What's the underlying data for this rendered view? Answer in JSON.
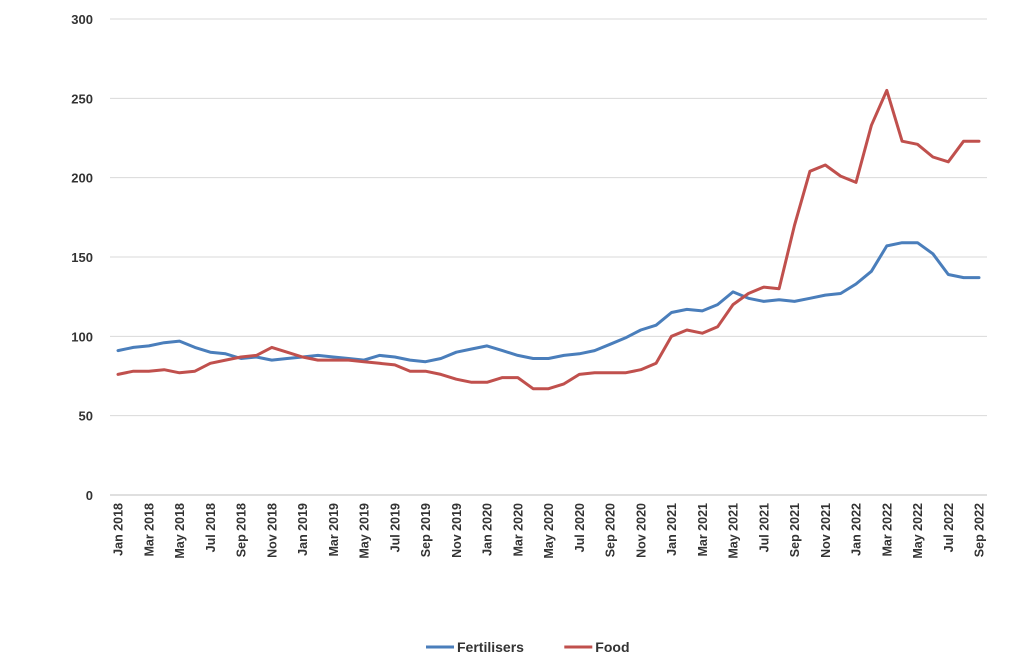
{
  "chart_data": {
    "type": "line",
    "title": "",
    "xlabel": "",
    "ylabel": "",
    "ylim": [
      0,
      300
    ],
    "y_ticks": [
      0,
      50,
      100,
      150,
      200,
      250,
      300
    ],
    "grid": "horizontal",
    "legend_position": "bottom-center",
    "x": [
      "Jan 2018",
      "Feb 2018",
      "Mar 2018",
      "Apr 2018",
      "May 2018",
      "Jun 2018",
      "Jul 2018",
      "Aug 2018",
      "Sep 2018",
      "Oct 2018",
      "Nov 2018",
      "Dec 2018",
      "Jan 2019",
      "Feb 2019",
      "Mar 2019",
      "Apr 2019",
      "May 2019",
      "Jun 2019",
      "Jul 2019",
      "Aug 2019",
      "Sep 2019",
      "Oct 2019",
      "Nov 2019",
      "Dec 2019",
      "Jan 2020",
      "Feb 2020",
      "Mar 2020",
      "Apr 2020",
      "May 2020",
      "Jun 2020",
      "Jul 2020",
      "Aug 2020",
      "Sep 2020",
      "Oct 2020",
      "Nov 2020",
      "Dec 2020",
      "Jan 2021",
      "Feb 2021",
      "Mar 2021",
      "Apr 2021",
      "May 2021",
      "Jun 2021",
      "Jul 2021",
      "Aug 2021",
      "Sep 2021",
      "Oct 2021",
      "Nov 2021",
      "Dec 2021",
      "Jan 2022",
      "Feb 2022",
      "Mar 2022",
      "Apr 2022",
      "May 2022",
      "Jun 2022",
      "Jul 2022",
      "Aug 2022",
      "Sep 2022"
    ],
    "x_tick_labels": [
      "Jan 2018",
      "Mar 2018",
      "May 2018",
      "Jul 2018",
      "Sep 2018",
      "Nov 2018",
      "Jan 2019",
      "Mar 2019",
      "May 2019",
      "Jul 2019",
      "Sep 2019",
      "Nov 2019",
      "Jan 2020",
      "Mar 2020",
      "May 2020",
      "Jul 2020",
      "Sep 2020",
      "Nov 2020",
      "Jan 2021",
      "Mar 2021",
      "May 2021",
      "Jul 2021",
      "Sep 2021",
      "Nov 2021",
      "Jan 2022",
      "Mar 2022",
      "May 2022",
      "Jul 2022",
      "Sep 2022"
    ],
    "series": [
      {
        "name": "Fertilisers",
        "color": "#4a7ebb",
        "values": [
          91,
          93,
          94,
          96,
          97,
          93,
          90,
          89,
          86,
          87,
          85,
          86,
          87,
          88,
          87,
          86,
          85,
          88,
          87,
          85,
          84,
          86,
          90,
          92,
          94,
          91,
          88,
          86,
          86,
          88,
          89,
          91,
          95,
          99,
          104,
          107,
          115,
          117,
          116,
          120,
          128,
          124,
          122,
          123,
          122,
          124,
          126,
          127,
          133,
          141,
          157,
          159,
          159,
          152,
          139,
          137,
          137
        ]
      },
      {
        "name": "Food",
        "color": "#c0504d",
        "values": [
          76,
          78,
          78,
          79,
          77,
          78,
          83,
          85,
          87,
          88,
          93,
          90,
          87,
          85,
          85,
          85,
          84,
          83,
          82,
          78,
          78,
          76,
          73,
          71,
          71,
          74,
          74,
          67,
          67,
          70,
          76,
          77,
          77,
          77,
          79,
          83,
          100,
          104,
          102,
          106,
          120,
          127,
          131,
          130,
          170,
          204,
          208,
          201,
          197,
          233,
          255,
          223,
          221,
          213,
          210,
          223,
          223
        ]
      }
    ]
  }
}
